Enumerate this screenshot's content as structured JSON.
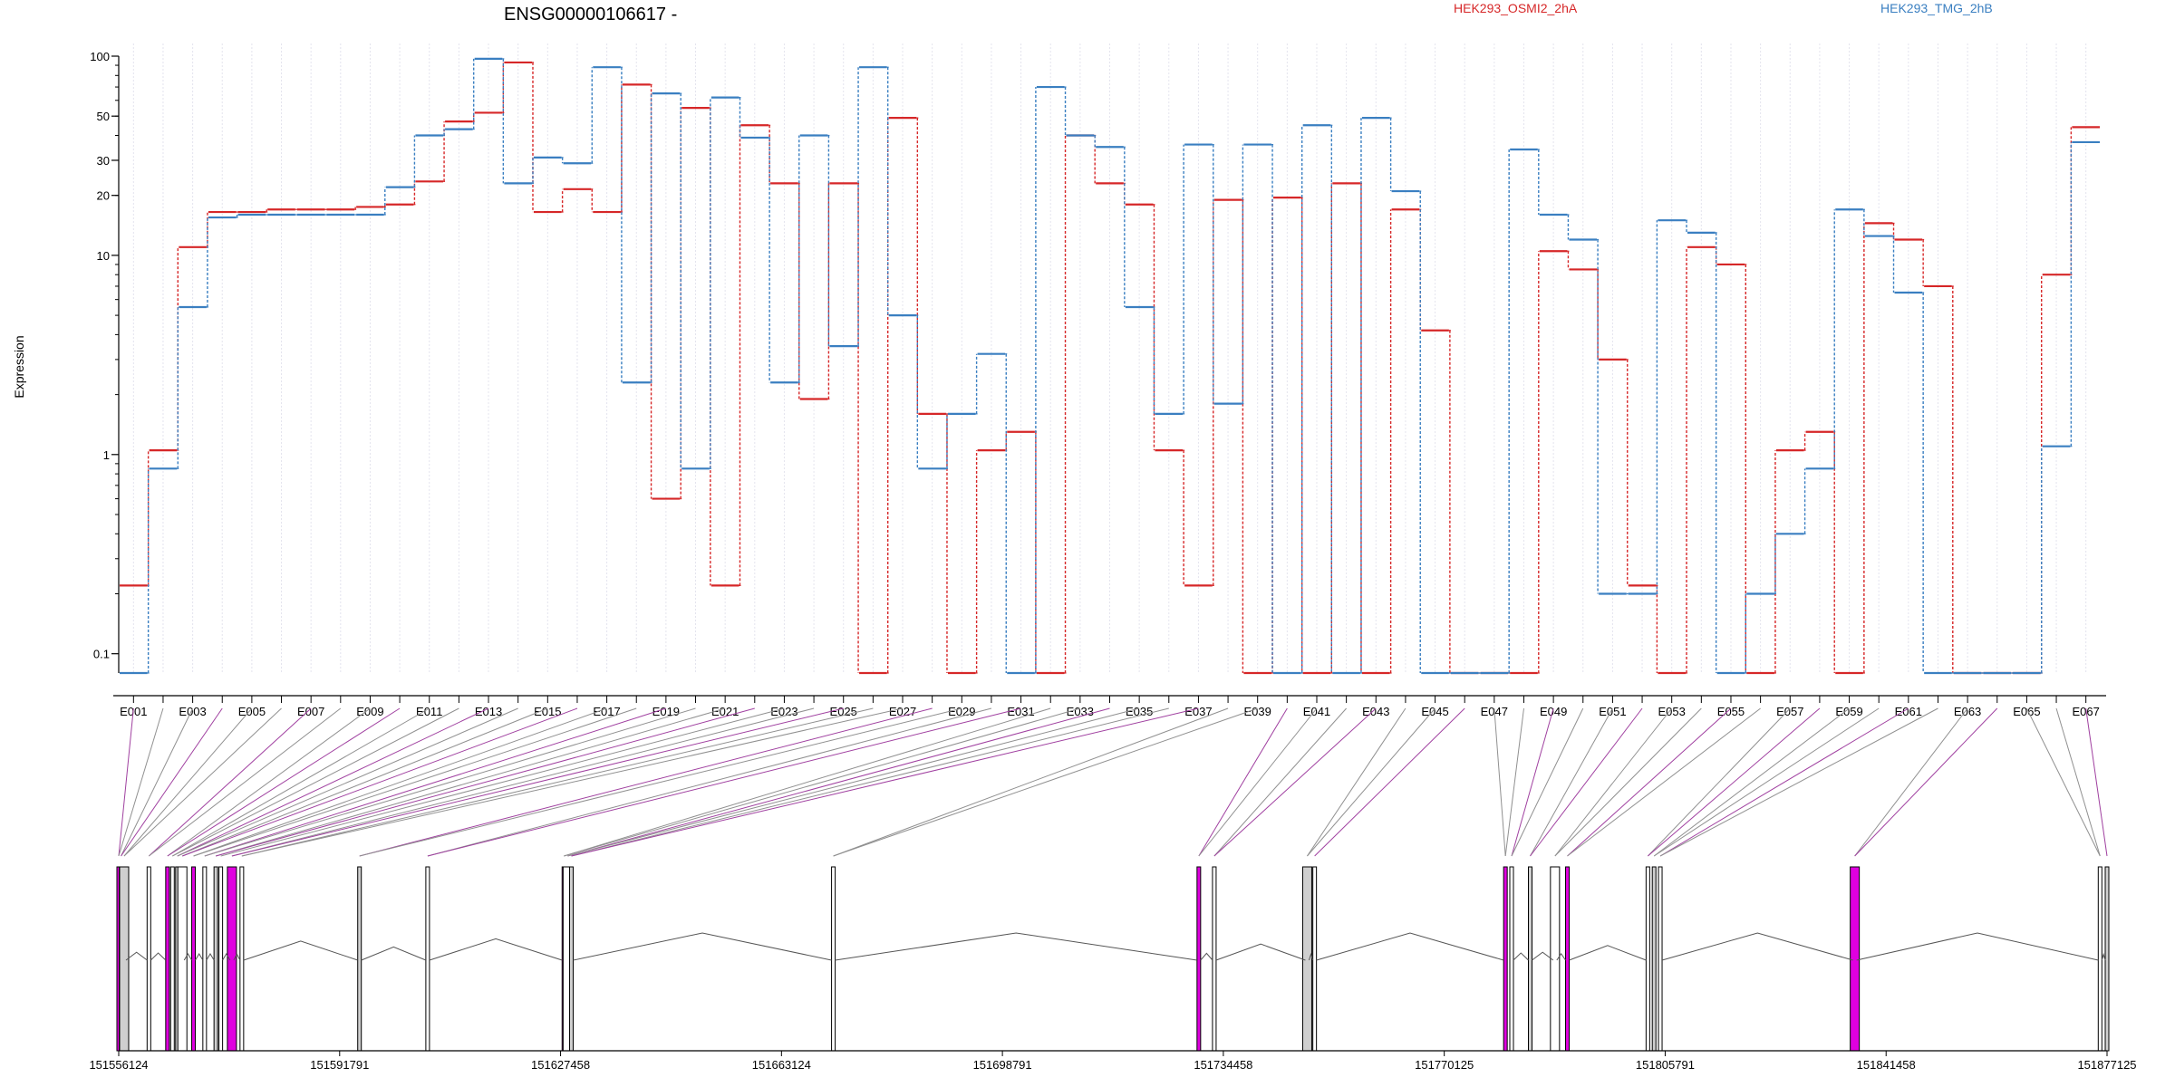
{
  "chart_data": {
    "type": "line",
    "title": "ENSG00000106617 -",
    "ylabel": "Expression",
    "xlabel": "",
    "y_scale": "log",
    "ylim": [
      0.08,
      100
    ],
    "y_ticks": [
      0.1,
      1,
      10,
      20,
      30,
      50,
      100
    ],
    "y_tick_labels": [
      "0.1",
      "1",
      "10",
      "20",
      "30",
      "50",
      "100"
    ],
    "grid": "vertical dotted",
    "legend_placement": "top",
    "series": [
      {
        "name": "HEK293_OSMI2_2hA",
        "color": "#d62728",
        "values": [
          0.22,
          1.05,
          11,
          16.5,
          16.5,
          17,
          17,
          17,
          17.5,
          18,
          23.5,
          47,
          52,
          93,
          16.5,
          21.5,
          16.5,
          72,
          0.6,
          55,
          0.22,
          45,
          23,
          1.9,
          23,
          0.08,
          49,
          1.6,
          0.08,
          1.05,
          1.3,
          0.08,
          40,
          23,
          18,
          1.05,
          0.22,
          19,
          0.08,
          19.5,
          0.08,
          23,
          0.08,
          17,
          4.2,
          0.08,
          0.08,
          0.08,
          10.5,
          8.5,
          3.0,
          0.22,
          0.08,
          11,
          9,
          0.08,
          1.05,
          1.3,
          0.08,
          14.5,
          12,
          7,
          0.08,
          0.08,
          0.08,
          8,
          44
        ]
      },
      {
        "name": "HEK293_TMG_2hB",
        "color": "#3a7fc1",
        "values": [
          0.08,
          0.85,
          5.5,
          15.5,
          16,
          16,
          16,
          16,
          16,
          22,
          40,
          43,
          97,
          23,
          31,
          29,
          88,
          2.3,
          65,
          0.85,
          62,
          39,
          2.3,
          40,
          3.5,
          88,
          5.0,
          0.85,
          1.6,
          3.2,
          0.08,
          70,
          40,
          35,
          5.5,
          1.6,
          36,
          1.8,
          36,
          0.08,
          45,
          0.08,
          49,
          21,
          0.08,
          0.08,
          0.08,
          34,
          16,
          12,
          0.2,
          0.2,
          15,
          13,
          0.08,
          0.2,
          0.4,
          0.85,
          17,
          12.5,
          6.5,
          0.08,
          0.08,
          0.08,
          0.08,
          1.1,
          37
        ]
      }
    ],
    "exon_tick_labels": [
      "E001",
      "E003",
      "E005",
      "E007",
      "E009",
      "E011",
      "E013",
      "E015",
      "E017",
      "E019",
      "E021",
      "E023",
      "E025",
      "E027",
      "E029",
      "E031",
      "E033",
      "E035",
      "E037",
      "E039",
      "E041",
      "E043",
      "E045",
      "E047",
      "E049",
      "E051",
      "E053",
      "E055",
      "E057",
      "E059",
      "E061",
      "E063",
      "E065",
      "E067"
    ],
    "genomic_coordinates": [
      "151556124",
      "151591791",
      "151627458",
      "151663124",
      "151698791",
      "151734458",
      "151770125",
      "151805791",
      "151841458",
      "151877125"
    ],
    "gene_model": {
      "exon_genomic_positions": [
        151556124,
        151556500,
        151557000,
        151561000,
        151564000,
        151564800,
        151565600,
        151566400,
        151568200,
        151570000,
        151571800,
        151572600,
        151574400,
        151576000,
        151595000,
        151606000,
        151628000,
        151628600,
        151629200,
        151671500,
        151730500,
        151733000,
        151748000,
        151749200,
        151780000,
        151781000,
        151784000,
        151788000,
        151790000,
        151803000,
        151804000,
        151805000,
        151836400,
        151876000,
        151877125
      ],
      "highlight_color": "#e000e0",
      "neutral_color": "#808080"
    }
  }
}
